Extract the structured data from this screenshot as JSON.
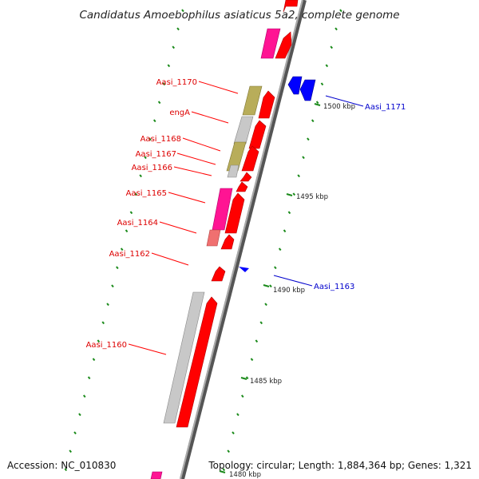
{
  "title": "Candidatus Amoebophilus asiaticus 5a2, complete genome",
  "footer": {
    "accession": "Accession: NC_010830",
    "summary": "Topology: circular; Length: 1,884,364 bp; Genes: 1,321"
  },
  "colors": {
    "forward": "#ff0000",
    "reverse": "#0000ff",
    "pink": "#ff1493",
    "olive": "#b8ad5a",
    "grey": "#c8c8c8",
    "lightred": "#f07070",
    "tick": "#1a8a1a",
    "backbone": "#888888"
  },
  "ruler": [
    {
      "label": "1500 kbp"
    },
    {
      "label": "1495 kbp"
    },
    {
      "label": "1490 kbp"
    },
    {
      "label": "1485 kbp"
    },
    {
      "label": "1480 kbp"
    }
  ],
  "genes": [
    {
      "label": "Aasi_1170",
      "strand": "+"
    },
    {
      "label": "engA",
      "strand": "+"
    },
    {
      "label": "Aasi_1168",
      "strand": "+"
    },
    {
      "label": "Aasi_1167",
      "strand": "+"
    },
    {
      "label": "Aasi_1166",
      "strand": "+"
    },
    {
      "label": "Aasi_1165",
      "strand": "+"
    },
    {
      "label": "Aasi_1164",
      "strand": "+"
    },
    {
      "label": "Aasi_1162",
      "strand": "+"
    },
    {
      "label": "Aasi_1160",
      "strand": "+"
    },
    {
      "label": "Aasi_1171",
      "strand": "-"
    },
    {
      "label": "Aasi_1163",
      "strand": "-"
    }
  ]
}
